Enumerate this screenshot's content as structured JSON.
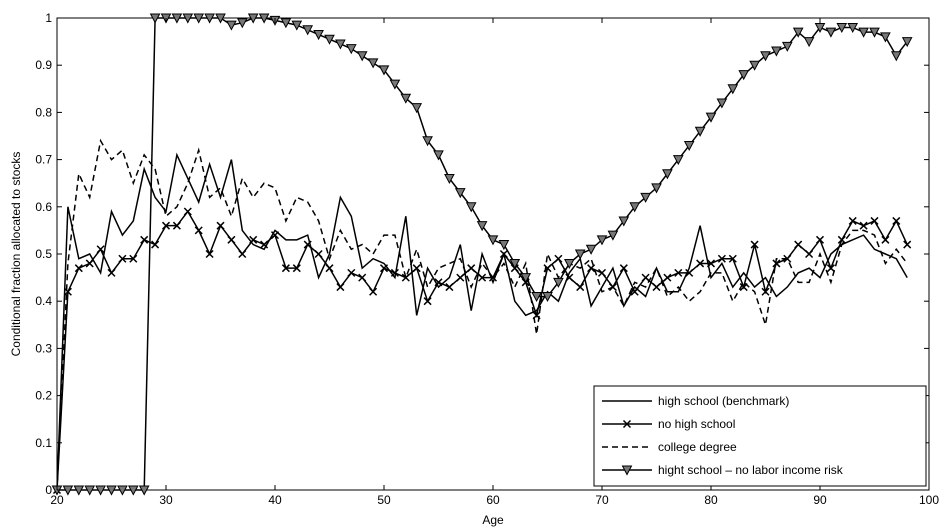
{
  "chart_data": {
    "type": "line",
    "xlabel": "Age",
    "ylabel": "Conditional fraction allocated to stocks",
    "xlim": [
      20,
      100
    ],
    "ylim": [
      0,
      1
    ],
    "xticks": [
      20,
      30,
      40,
      50,
      60,
      70,
      80,
      90,
      100
    ],
    "yticks": [
      0,
      0.1,
      0.2,
      0.3,
      0.4,
      0.5,
      0.6,
      0.7,
      0.8,
      0.9,
      1
    ],
    "grid": false,
    "legend_position": "bottom-right",
    "series": [
      {
        "name": "high school (benchmark)",
        "style": "solid",
        "marker": "none",
        "x": [
          20,
          21,
          22,
          23,
          24,
          25,
          26,
          27,
          28,
          29,
          30,
          31,
          32,
          33,
          34,
          35,
          36,
          37,
          38,
          39,
          40,
          41,
          42,
          43,
          44,
          45,
          46,
          47,
          48,
          49,
          50,
          51,
          52,
          53,
          54,
          55,
          56,
          57,
          58,
          59,
          60,
          61,
          62,
          63,
          64,
          65,
          66,
          67,
          68,
          69,
          70,
          71,
          72,
          73,
          74,
          75,
          76,
          77,
          78,
          79,
          80,
          81,
          82,
          83,
          84,
          85,
          86,
          87,
          88,
          89,
          90,
          91,
          92,
          93,
          94,
          95,
          96,
          97,
          98
        ],
        "y": [
          0,
          0.6,
          0.49,
          0.5,
          0.46,
          0.59,
          0.54,
          0.57,
          0.68,
          0.62,
          0.59,
          0.71,
          0.66,
          0.61,
          0.69,
          0.62,
          0.7,
          0.55,
          0.52,
          0.51,
          0.55,
          0.53,
          0.53,
          0.54,
          0.45,
          0.5,
          0.62,
          0.58,
          0.47,
          0.49,
          0.48,
          0.45,
          0.58,
          0.37,
          0.47,
          0.43,
          0.45,
          0.52,
          0.38,
          0.5,
          0.44,
          0.5,
          0.4,
          0.37,
          0.38,
          0.42,
          0.4,
          0.46,
          0.49,
          0.39,
          0.43,
          0.47,
          0.39,
          0.43,
          0.41,
          0.47,
          0.42,
          0.42,
          0.47,
          0.56,
          0.45,
          0.48,
          0.43,
          0.46,
          0.43,
          0.45,
          0.41,
          0.43,
          0.46,
          0.47,
          0.45,
          0.5,
          0.52,
          0.53,
          0.54,
          0.51,
          0.5,
          0.49,
          0.45
        ]
      },
      {
        "name": "no high school",
        "style": "solid",
        "marker": "x",
        "x": [
          20,
          21,
          22,
          23,
          24,
          25,
          26,
          27,
          28,
          29,
          30,
          31,
          32,
          33,
          34,
          35,
          36,
          37,
          38,
          39,
          40,
          41,
          42,
          43,
          44,
          45,
          46,
          47,
          48,
          49,
          50,
          51,
          52,
          53,
          54,
          55,
          56,
          57,
          58,
          59,
          60,
          61,
          62,
          63,
          64,
          65,
          66,
          67,
          68,
          69,
          70,
          71,
          72,
          73,
          74,
          75,
          76,
          77,
          78,
          79,
          80,
          81,
          82,
          83,
          84,
          85,
          86,
          87,
          88,
          89,
          90,
          91,
          92,
          93,
          94,
          95,
          96,
          97,
          98
        ],
        "y": [
          0,
          0.42,
          0.47,
          0.48,
          0.51,
          0.46,
          0.49,
          0.49,
          0.53,
          0.52,
          0.56,
          0.56,
          0.59,
          0.55,
          0.5,
          0.56,
          0.53,
          0.5,
          0.53,
          0.52,
          0.54,
          0.47,
          0.47,
          0.52,
          0.5,
          0.47,
          0.43,
          0.46,
          0.45,
          0.42,
          0.47,
          0.46,
          0.45,
          0.47,
          0.4,
          0.44,
          0.43,
          0.45,
          0.47,
          0.45,
          0.45,
          0.5,
          0.47,
          0.44,
          0.37,
          0.47,
          0.49,
          0.45,
          0.43,
          0.47,
          0.46,
          0.43,
          0.47,
          0.42,
          0.45,
          0.43,
          0.45,
          0.46,
          0.46,
          0.48,
          0.48,
          0.49,
          0.49,
          0.43,
          0.52,
          0.42,
          0.48,
          0.49,
          0.52,
          0.5,
          0.53,
          0.47,
          0.53,
          0.57,
          0.56,
          0.57,
          0.53,
          0.57,
          0.52
        ]
      },
      {
        "name": "college degree",
        "style": "dashed",
        "marker": "none",
        "x": [
          20,
          21,
          22,
          23,
          24,
          25,
          26,
          27,
          28,
          29,
          30,
          31,
          32,
          33,
          34,
          35,
          36,
          37,
          38,
          39,
          40,
          41,
          42,
          43,
          44,
          45,
          46,
          47,
          48,
          49,
          50,
          51,
          52,
          53,
          54,
          55,
          56,
          57,
          58,
          59,
          60,
          61,
          62,
          63,
          64,
          65,
          66,
          67,
          68,
          69,
          70,
          71,
          72,
          73,
          74,
          75,
          76,
          77,
          78,
          79,
          80,
          81,
          82,
          83,
          84,
          85,
          86,
          87,
          88,
          89,
          90,
          91,
          92,
          93,
          94,
          95,
          96,
          97,
          98
        ],
        "y": [
          0,
          0.48,
          0.67,
          0.62,
          0.74,
          0.7,
          0.72,
          0.65,
          0.71,
          0.68,
          0.58,
          0.6,
          0.65,
          0.72,
          0.62,
          0.64,
          0.58,
          0.66,
          0.62,
          0.65,
          0.64,
          0.57,
          0.62,
          0.61,
          0.57,
          0.49,
          0.55,
          0.51,
          0.52,
          0.5,
          0.54,
          0.54,
          0.45,
          0.51,
          0.43,
          0.47,
          0.48,
          0.49,
          0.43,
          0.48,
          0.45,
          0.48,
          0.43,
          0.48,
          0.33,
          0.5,
          0.45,
          0.48,
          0.47,
          0.49,
          0.42,
          0.43,
          0.39,
          0.44,
          0.43,
          0.47,
          0.41,
          0.43,
          0.4,
          0.42,
          0.46,
          0.46,
          0.4,
          0.44,
          0.42,
          0.35,
          0.49,
          0.49,
          0.44,
          0.44,
          0.5,
          0.44,
          0.52,
          0.55,
          0.55,
          0.54,
          0.48,
          0.51,
          0.48
        ]
      },
      {
        "name": "hight school – no labor income risk",
        "style": "solid",
        "marker": "triangle-down",
        "x": [
          20,
          21,
          22,
          23,
          24,
          25,
          26,
          27,
          28,
          29,
          30,
          31,
          32,
          33,
          34,
          35,
          36,
          37,
          38,
          39,
          40,
          41,
          42,
          43,
          44,
          45,
          46,
          47,
          48,
          49,
          50,
          51,
          52,
          53,
          54,
          55,
          56,
          57,
          58,
          59,
          60,
          61,
          62,
          63,
          64,
          65,
          66,
          67,
          68,
          69,
          70,
          71,
          72,
          73,
          74,
          75,
          76,
          77,
          78,
          79,
          80,
          81,
          82,
          83,
          84,
          85,
          86,
          87,
          88,
          89,
          90,
          91,
          92,
          93,
          94,
          95,
          96,
          97,
          98
        ],
        "y": [
          0,
          0,
          0,
          0,
          0,
          0,
          0,
          0,
          0,
          1.0,
          1.0,
          1.0,
          1.0,
          1.0,
          1.0,
          1.0,
          0.985,
          0.99,
          1.0,
          1.0,
          0.995,
          0.99,
          0.985,
          0.975,
          0.965,
          0.955,
          0.945,
          0.935,
          0.92,
          0.905,
          0.89,
          0.86,
          0.83,
          0.81,
          0.74,
          0.71,
          0.66,
          0.63,
          0.6,
          0.56,
          0.53,
          0.52,
          0.48,
          0.45,
          0.41,
          0.41,
          0.44,
          0.48,
          0.5,
          0.51,
          0.53,
          0.54,
          0.57,
          0.6,
          0.62,
          0.64,
          0.67,
          0.7,
          0.73,
          0.76,
          0.79,
          0.82,
          0.85,
          0.88,
          0.9,
          0.92,
          0.93,
          0.94,
          0.97,
          0.95,
          0.98,
          0.97,
          0.98,
          0.98,
          0.97,
          0.97,
          0.96,
          0.92,
          0.95
        ]
      }
    ]
  }
}
